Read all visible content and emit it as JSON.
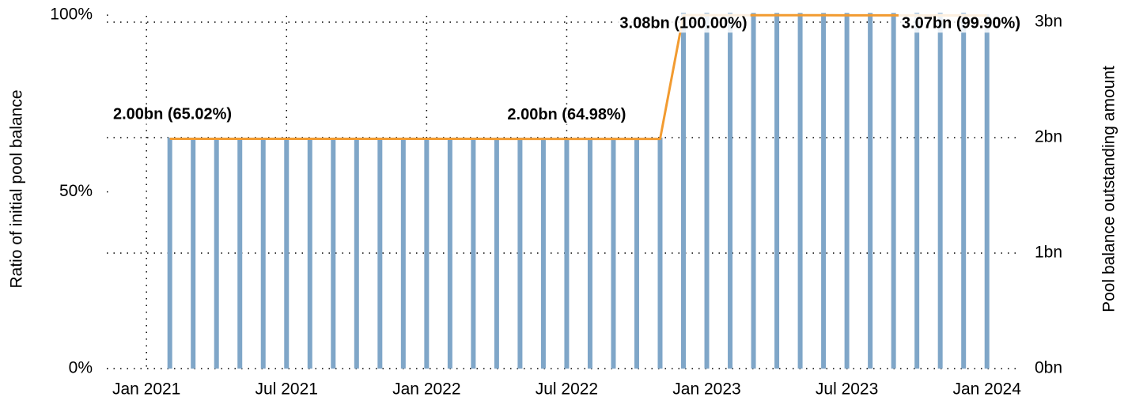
{
  "chart_data": {
    "type": "combo",
    "ylabel": "Ratio of initial pool balance",
    "y2label": "Pool balance outstanding amount",
    "x": [
      "2021-01",
      "2021-02",
      "2021-03",
      "2021-04",
      "2021-05",
      "2021-06",
      "2021-07",
      "2021-08",
      "2021-09",
      "2021-10",
      "2021-11",
      "2021-12",
      "2022-01",
      "2022-02",
      "2022-03",
      "2022-04",
      "2022-05",
      "2022-06",
      "2022-07",
      "2022-08",
      "2022-09",
      "2022-10",
      "2022-11",
      "2022-12",
      "2023-01",
      "2023-02",
      "2023-03",
      "2023-04",
      "2023-05",
      "2023-06",
      "2023-07",
      "2023-08",
      "2023-09",
      "2023-10",
      "2023-11",
      "2023-12"
    ],
    "series": [
      {
        "type": "bar",
        "axis": "y2",
        "color": "#7fa6c8",
        "values": [
          2.0,
          2.0,
          2.0,
          2.0,
          2.0,
          2.0,
          2.0,
          2.0,
          2.0,
          2.0,
          2.0,
          2.0,
          2.0,
          2.0,
          2.0,
          2.0,
          2.0,
          2.0,
          2.0,
          2.0,
          2.0,
          2.0,
          3.08,
          3.08,
          3.08,
          3.08,
          3.08,
          3.08,
          3.08,
          3.08,
          3.08,
          3.08,
          3.08,
          3.08,
          3.08,
          3.07
        ]
      },
      {
        "type": "line",
        "axis": "y",
        "color": "#f29b30",
        "values": [
          65.02,
          65.02,
          65.02,
          65.01,
          65.01,
          65.01,
          65.01,
          65.01,
          65.0,
          65.0,
          65.0,
          65.0,
          65.0,
          65.0,
          64.99,
          64.99,
          64.99,
          64.98,
          64.98,
          64.98,
          64.98,
          64.98,
          100.0,
          100.0,
          99.99,
          99.99,
          99.98,
          99.97,
          99.97,
          99.96,
          99.95,
          99.94,
          99.93,
          99.92,
          99.91,
          99.9
        ]
      }
    ],
    "annotations": [
      {
        "x": "2021-01",
        "text": "2.00bn (65.02%)"
      },
      {
        "x": "2022-06",
        "text": "2.00bn (64.98%)"
      },
      {
        "x": "2022-11",
        "text": "3.08bn (100.00%)"
      },
      {
        "x": "2023-12",
        "text": "3.07bn (99.90%)"
      }
    ],
    "xlim": [
      "2020-11-10",
      "2024-02-14"
    ],
    "xticks": [
      {
        "value": "2021-01",
        "label": "Jan 2021"
      },
      {
        "value": "2021-07",
        "label": "Jul 2021"
      },
      {
        "value": "2022-01",
        "label": "Jan 2022"
      },
      {
        "value": "2022-07",
        "label": "Jul 2022"
      },
      {
        "value": "2023-01",
        "label": "Jan 2023"
      },
      {
        "value": "2023-07",
        "label": "Jul 2023"
      },
      {
        "value": "2024-01",
        "label": "Jan 2024"
      }
    ],
    "ylim": [
      0,
      101.6
    ],
    "yticks": [
      {
        "value": 0,
        "label": "0%"
      },
      {
        "value": 50,
        "label": "50%"
      },
      {
        "value": 100,
        "label": "100%"
      }
    ],
    "y2lim": [
      0,
      3.11
    ],
    "y2ticks": [
      {
        "value": 0,
        "label": "0bn"
      },
      {
        "value": 1,
        "label": "1bn"
      },
      {
        "value": 2,
        "label": "2bn"
      },
      {
        "value": 3,
        "label": "3bn"
      }
    ],
    "grid": true
  }
}
